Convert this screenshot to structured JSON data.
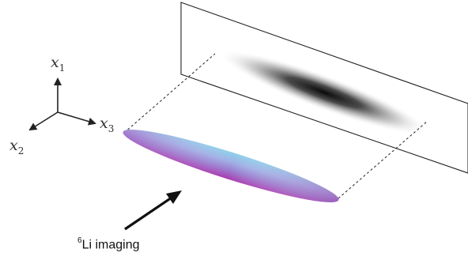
{
  "axes": {
    "x1": {
      "base": "x",
      "sub": "1"
    },
    "x2": {
      "base": "x",
      "sub": "2"
    },
    "x3": {
      "base": "x",
      "sub": "3"
    }
  },
  "imaging": {
    "isotope_mass": "6",
    "text": "Li imaging"
  },
  "colors": {
    "cloud_light": "#8fd0ea",
    "cloud_mid": "#9a8fd8",
    "cloud_dark": "#b03ab2",
    "shadow": "#111111",
    "lines": "#222222"
  }
}
